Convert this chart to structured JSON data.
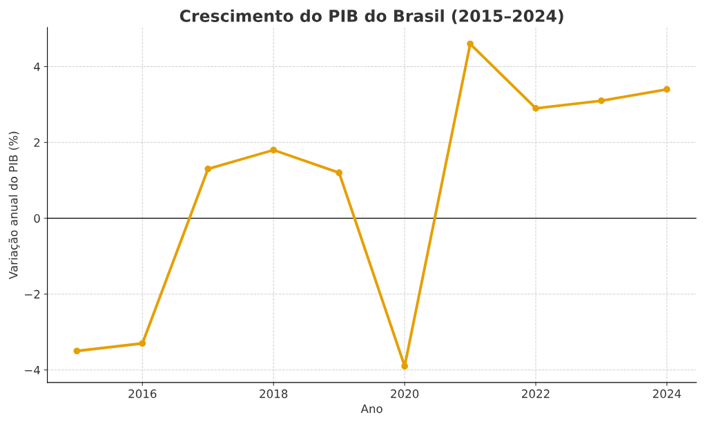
{
  "chart_data": {
    "type": "line",
    "title": "Crescimento do PIB do Brasil (2015–2024)",
    "xlabel": "Ano",
    "ylabel": "Variação anual do PIB (%)",
    "x": [
      2015,
      2016,
      2017,
      2018,
      2019,
      2020,
      2021,
      2022,
      2023,
      2024
    ],
    "series": [
      {
        "color": "#e69f00",
        "values": [
          -3.5,
          -3.3,
          1.3,
          1.8,
          1.2,
          -3.9,
          4.6,
          2.9,
          3.1,
          3.4
        ]
      }
    ],
    "xlim": [
      2014.55,
      2024.45
    ],
    "xticks": [
      2016,
      2018,
      2020,
      2022,
      2024
    ],
    "ylim": [
      -4.33,
      5.03
    ],
    "yticks": [
      {
        "value": -4,
        "label": "−4"
      },
      {
        "value": -2,
        "label": "−2"
      },
      0,
      2,
      4
    ],
    "ref_lines": [
      {
        "axis": "y",
        "value": 0,
        "color": "#000000",
        "line_style": "solid"
      }
    ],
    "grid": true,
    "marker": "circle",
    "line_style": "solid"
  }
}
